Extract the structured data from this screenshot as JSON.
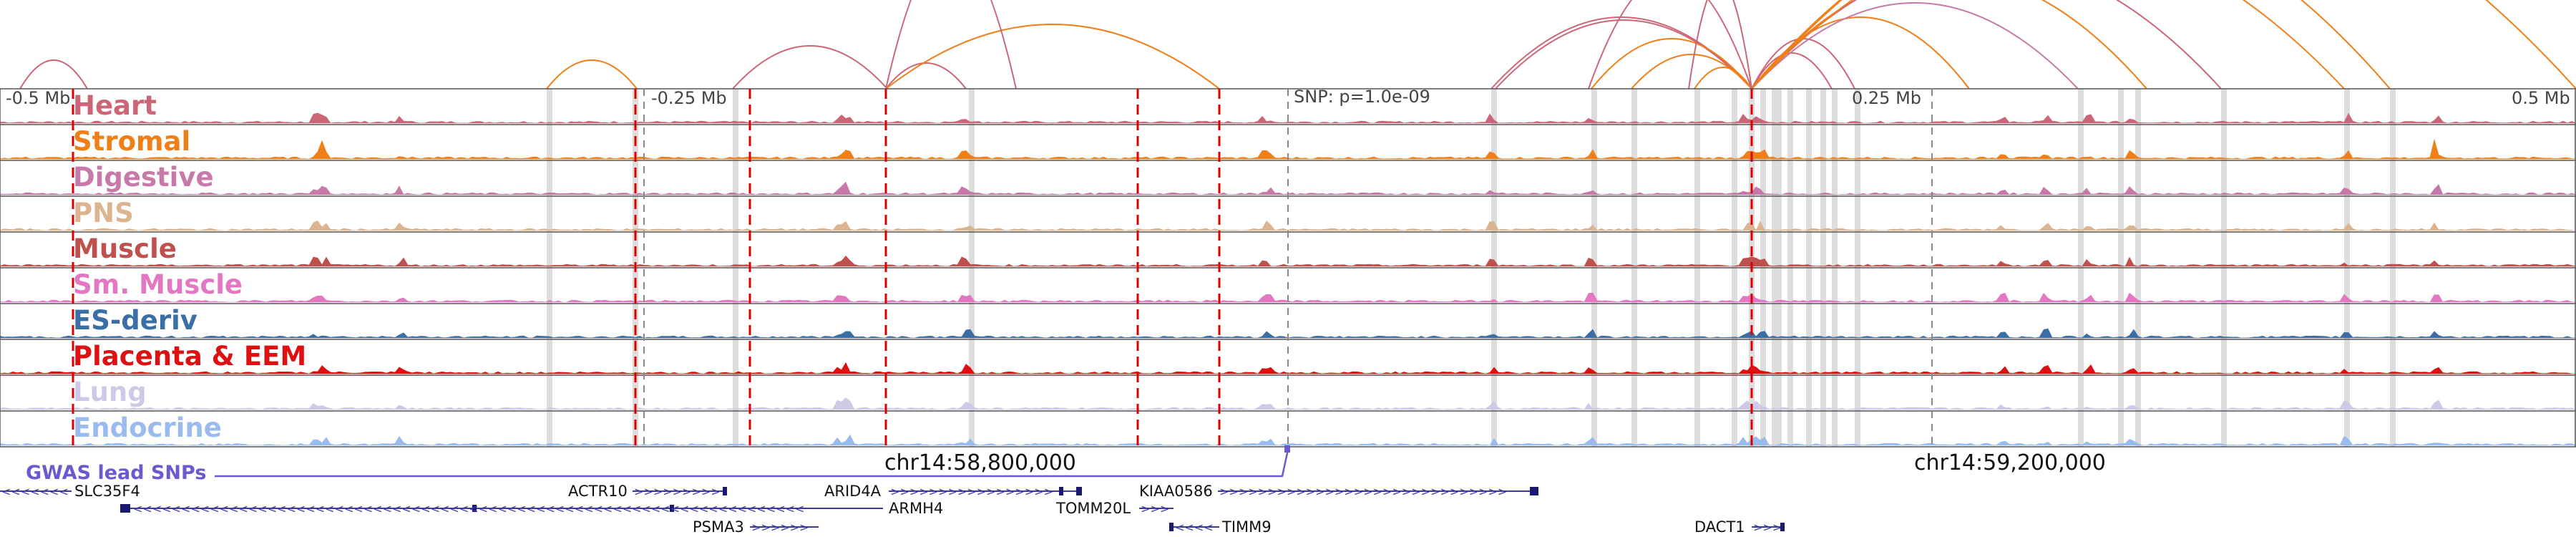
{
  "title": "Genome browser view: chr14 region with chromatin accessibility tracks and loops",
  "ruler": {
    "left_label": "-0.5 Mb",
    "mid_left_label": "-0.25 Mb",
    "snp_label": "SNP: p=1.0e-09",
    "mid_right_label": "0.25 Mb",
    "right_label": "0.5 Mb"
  },
  "tracks": [
    {
      "name": "Heart",
      "color": "#cc6677"
    },
    {
      "name": "Stromal",
      "color": "#f07f18"
    },
    {
      "name": "Digestive",
      "color": "#c77aa9"
    },
    {
      "name": "PNS",
      "color": "#dcb48f"
    },
    {
      "name": "Muscle",
      "color": "#c0504d"
    },
    {
      "name": "Sm. Muscle",
      "color": "#e377c2"
    },
    {
      "name": "ES-deriv",
      "color": "#3a6ea5"
    },
    {
      "name": "Placenta & EEM",
      "color": "#dd1111"
    },
    {
      "name": "Lung",
      "color": "#cfc8e6"
    },
    {
      "name": "Endocrine",
      "color": "#99bbee"
    }
  ],
  "coordinates": {
    "left": "chr14:58,800,000",
    "right": "chr14:59,200,000"
  },
  "gwas": {
    "label": "GWAS lead SNPs",
    "color": "#6a5acd"
  },
  "genes": [
    {
      "name": "SLC35F4",
      "strand": "-"
    },
    {
      "name": "ACTR10",
      "strand": "+"
    },
    {
      "name": "ARID4A",
      "strand": "+"
    },
    {
      "name": "KIAA0586",
      "strand": "+"
    },
    {
      "name": "ARMH4",
      "strand": "-"
    },
    {
      "name": "TOMM20L",
      "strand": "+"
    },
    {
      "name": "PSMA3",
      "strand": "+"
    },
    {
      "name": "TIMM9",
      "strand": "-"
    },
    {
      "name": "DACT1",
      "strand": "+"
    }
  ],
  "colors": {
    "gene_body": "#1a1a6e",
    "highlight_band": "#dddddd",
    "snp_line": "#dd0000"
  }
}
